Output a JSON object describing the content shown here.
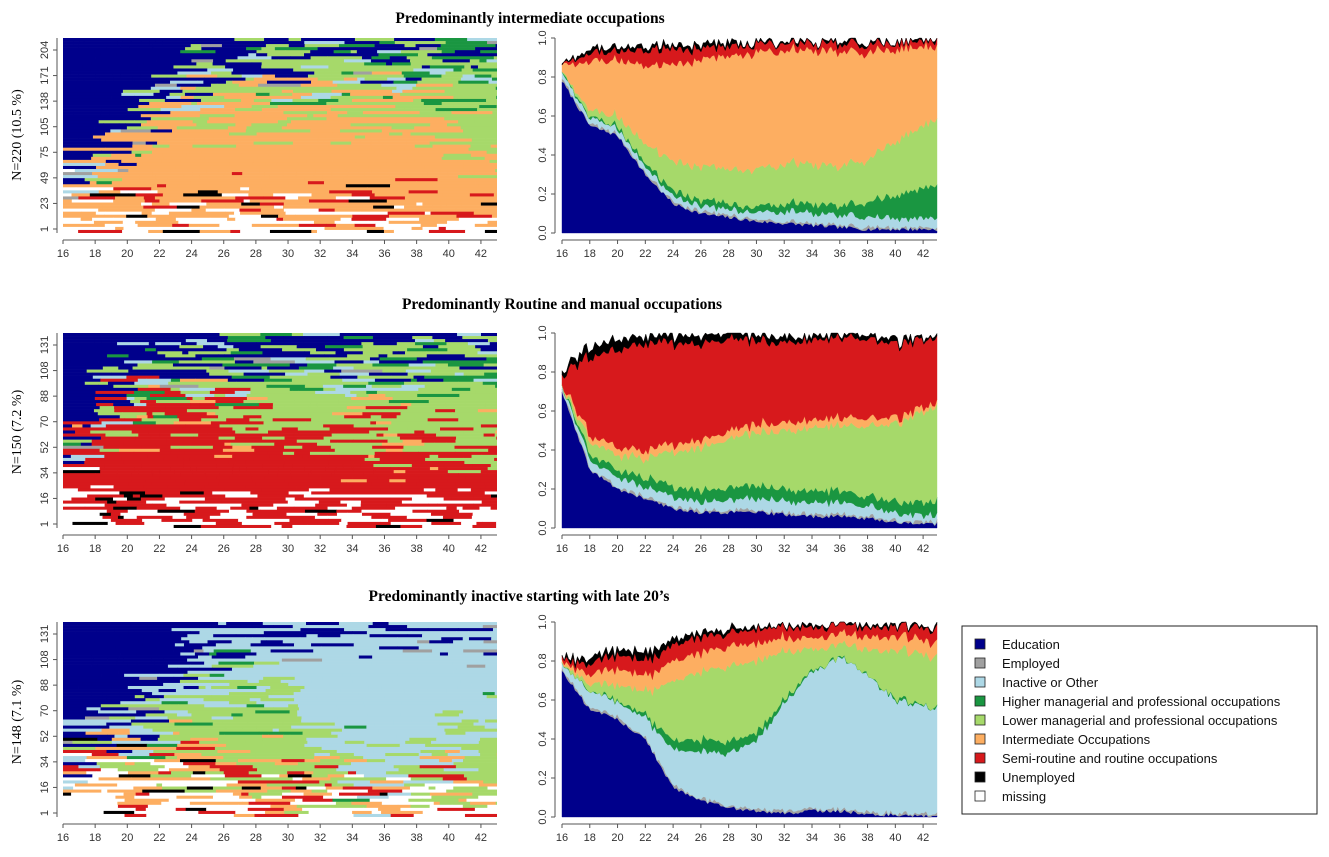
{
  "legend": [
    {
      "label": "Education",
      "color": "#00008B"
    },
    {
      "label": "Employed",
      "color": "#A0A0A0"
    },
    {
      "label": "Inactive or Other",
      "color": "#ADD8E6"
    },
    {
      "label": "Higher managerial and professional occupations",
      "color": "#1A9641"
    },
    {
      "label": "Lower managerial and professional occupations",
      "color": "#A6D96A"
    },
    {
      "label": "Intermediate Occupations",
      "color": "#FDAE61"
    },
    {
      "label": "Semi-routine and routine occupations",
      "color": "#D7191C"
    },
    {
      "label": "Unemployed",
      "color": "#000000"
    },
    {
      "label": "missing",
      "color": "#FFFFFF"
    }
  ],
  "chart_data": [
    {
      "type": "area",
      "title": "Predominantly intermediate occupations",
      "ylabel": "N=220 (10.5 %)",
      "x_ticks": [
        "16",
        "18",
        "20",
        "22",
        "24",
        "26",
        "28",
        "30",
        "32",
        "34",
        "36",
        "38",
        "40",
        "42"
      ],
      "index_ticks": [
        "1",
        "23",
        "49",
        "75",
        "105",
        "138",
        "171",
        "204"
      ],
      "y_ticks": [
        "0.0",
        "0.2",
        "0.4",
        "0.6",
        "0.8",
        "1.0"
      ],
      "xlim": [
        16,
        43
      ],
      "ylim": [
        0,
        1
      ],
      "x": [
        16,
        18,
        20,
        22,
        24,
        26,
        28,
        30,
        32,
        34,
        36,
        38,
        40,
        43
      ],
      "series": [
        {
          "name": "Education",
          "values": [
            0.78,
            0.55,
            0.5,
            0.3,
            0.15,
            0.1,
            0.08,
            0.06,
            0.05,
            0.04,
            0.03,
            0.02,
            0.02,
            0.02
          ]
        },
        {
          "name": "Employed",
          "values": [
            0.01,
            0.01,
            0.01,
            0.01,
            0.01,
            0.01,
            0.01,
            0.01,
            0.01,
            0.01,
            0.01,
            0.01,
            0.01,
            0.01
          ]
        },
        {
          "name": "Inactive or Other",
          "values": [
            0.03,
            0.03,
            0.03,
            0.03,
            0.03,
            0.03,
            0.03,
            0.04,
            0.05,
            0.05,
            0.05,
            0.05,
            0.05,
            0.05
          ]
        },
        {
          "name": "Higher managerial and professional occupations",
          "values": [
            0.0,
            0.01,
            0.01,
            0.02,
            0.03,
            0.03,
            0.03,
            0.03,
            0.04,
            0.05,
            0.05,
            0.08,
            0.12,
            0.17
          ]
        },
        {
          "name": "Lower managerial and professional occupations",
          "values": [
            0.0,
            0.03,
            0.05,
            0.1,
            0.15,
            0.17,
            0.18,
            0.19,
            0.2,
            0.2,
            0.2,
            0.22,
            0.28,
            0.34
          ]
        },
        {
          "name": "Intermediate Occupations",
          "values": [
            0.03,
            0.25,
            0.29,
            0.4,
            0.5,
            0.55,
            0.58,
            0.6,
            0.58,
            0.58,
            0.59,
            0.55,
            0.47,
            0.37
          ]
        },
        {
          "name": "Semi-routine and routine occupations",
          "values": [
            0.01,
            0.04,
            0.05,
            0.08,
            0.08,
            0.06,
            0.05,
            0.04,
            0.04,
            0.04,
            0.04,
            0.04,
            0.03,
            0.03
          ]
        },
        {
          "name": "Unemployed",
          "values": [
            0.0,
            0.02,
            0.02,
            0.02,
            0.02,
            0.02,
            0.02,
            0.01,
            0.01,
            0.01,
            0.01,
            0.01,
            0.01,
            0.01
          ]
        },
        {
          "name": "missing",
          "values": [
            0.14,
            0.06,
            0.04,
            0.04,
            0.03,
            0.03,
            0.02,
            0.02,
            0.02,
            0.02,
            0.02,
            0.02,
            0.01,
            0.0
          ]
        }
      ]
    },
    {
      "type": "area",
      "title": "Predominantly Routine and manual occupations",
      "ylabel": "N=150 (7.2 %)",
      "x_ticks": [
        "16",
        "18",
        "20",
        "22",
        "24",
        "26",
        "28",
        "30",
        "32",
        "34",
        "36",
        "38",
        "40",
        "42"
      ],
      "index_ticks": [
        "1",
        "16",
        "34",
        "52",
        "70",
        "88",
        "108",
        "131"
      ],
      "y_ticks": [
        "0.0",
        "0.2",
        "0.4",
        "0.6",
        "0.8",
        "1.0"
      ],
      "xlim": [
        16,
        43
      ],
      "ylim": [
        0,
        1
      ],
      "x": [
        16,
        18,
        20,
        22,
        24,
        26,
        28,
        30,
        32,
        34,
        36,
        38,
        40,
        43
      ],
      "series": [
        {
          "name": "Education",
          "values": [
            0.7,
            0.3,
            0.2,
            0.15,
            0.1,
            0.08,
            0.08,
            0.08,
            0.07,
            0.06,
            0.06,
            0.05,
            0.03,
            0.02
          ]
        },
        {
          "name": "Employed",
          "values": [
            0.01,
            0.01,
            0.01,
            0.01,
            0.01,
            0.01,
            0.01,
            0.01,
            0.01,
            0.01,
            0.01,
            0.01,
            0.01,
            0.01
          ]
        },
        {
          "name": "Inactive or Other",
          "values": [
            0.02,
            0.04,
            0.05,
            0.05,
            0.05,
            0.05,
            0.05,
            0.06,
            0.06,
            0.06,
            0.06,
            0.05,
            0.04,
            0.03
          ]
        },
        {
          "name": "Higher managerial and professional occupations",
          "values": [
            0.0,
            0.03,
            0.04,
            0.05,
            0.05,
            0.06,
            0.06,
            0.07,
            0.06,
            0.06,
            0.06,
            0.05,
            0.06,
            0.07
          ]
        },
        {
          "name": "Lower managerial and professional occupations",
          "values": [
            0.0,
            0.06,
            0.08,
            0.1,
            0.18,
            0.22,
            0.25,
            0.27,
            0.3,
            0.32,
            0.33,
            0.36,
            0.4,
            0.49
          ]
        },
        {
          "name": "Intermediate Occupations",
          "values": [
            0.01,
            0.03,
            0.04,
            0.04,
            0.04,
            0.04,
            0.04,
            0.04,
            0.04,
            0.04,
            0.04,
            0.04,
            0.03,
            0.02
          ]
        },
        {
          "name": "Semi-routine and routine occupations",
          "values": [
            0.05,
            0.4,
            0.5,
            0.55,
            0.52,
            0.49,
            0.47,
            0.43,
            0.41,
            0.41,
            0.41,
            0.41,
            0.38,
            0.33
          ]
        },
        {
          "name": "Unemployed",
          "values": [
            0.02,
            0.05,
            0.05,
            0.04,
            0.04,
            0.04,
            0.04,
            0.03,
            0.03,
            0.02,
            0.02,
            0.02,
            0.02,
            0.01
          ]
        },
        {
          "name": "missing",
          "values": [
            0.19,
            0.08,
            0.03,
            0.01,
            0.01,
            0.01,
            0.0,
            0.01,
            0.02,
            0.02,
            0.01,
            0.01,
            0.03,
            0.02
          ]
        }
      ]
    },
    {
      "type": "area",
      "title": "Predominantly inactive starting with late 20’s",
      "ylabel": "N=148 (7.1 %)",
      "x_ticks": [
        "16",
        "18",
        "20",
        "22",
        "24",
        "26",
        "28",
        "30",
        "32",
        "34",
        "36",
        "38",
        "40",
        "42"
      ],
      "index_ticks": [
        "1",
        "16",
        "34",
        "52",
        "70",
        "88",
        "108",
        "131"
      ],
      "y_ticks": [
        "0.0",
        "0.2",
        "0.4",
        "0.6",
        "0.8",
        "1.0"
      ],
      "xlim": [
        16,
        43
      ],
      "ylim": [
        0,
        1
      ],
      "x": [
        16,
        18,
        20,
        22,
        24,
        26,
        28,
        30,
        32,
        34,
        36,
        38,
        40,
        43
      ],
      "series": [
        {
          "name": "Education",
          "values": [
            0.75,
            0.55,
            0.5,
            0.4,
            0.15,
            0.08,
            0.05,
            0.03,
            0.02,
            0.03,
            0.03,
            0.02,
            0.01,
            0.0
          ]
        },
        {
          "name": "Employed",
          "values": [
            0.01,
            0.01,
            0.01,
            0.01,
            0.01,
            0.01,
            0.01,
            0.01,
            0.01,
            0.01,
            0.01,
            0.01,
            0.01,
            0.01
          ]
        },
        {
          "name": "Inactive or Other",
          "values": [
            0.03,
            0.08,
            0.08,
            0.1,
            0.18,
            0.24,
            0.27,
            0.35,
            0.55,
            0.7,
            0.78,
            0.7,
            0.58,
            0.54
          ]
        },
        {
          "name": "Higher managerial and professional occupations",
          "values": [
            0.0,
            0.0,
            0.01,
            0.02,
            0.05,
            0.06,
            0.06,
            0.04,
            0.02,
            0.01,
            0.0,
            0.0,
            0.01,
            0.01
          ]
        },
        {
          "name": "Lower managerial and professional occupations",
          "values": [
            0.0,
            0.04,
            0.08,
            0.12,
            0.3,
            0.35,
            0.38,
            0.37,
            0.25,
            0.11,
            0.06,
            0.13,
            0.25,
            0.26
          ]
        },
        {
          "name": "Intermediate Occupations",
          "values": [
            0.01,
            0.05,
            0.08,
            0.08,
            0.1,
            0.1,
            0.1,
            0.09,
            0.07,
            0.06,
            0.05,
            0.07,
            0.07,
            0.08
          ]
        },
        {
          "name": "Semi-routine and routine occupations",
          "values": [
            0.01,
            0.05,
            0.07,
            0.08,
            0.08,
            0.08,
            0.07,
            0.07,
            0.06,
            0.05,
            0.05,
            0.05,
            0.05,
            0.07
          ]
        },
        {
          "name": "Unemployed",
          "values": [
            0.01,
            0.03,
            0.03,
            0.04,
            0.03,
            0.02,
            0.02,
            0.01,
            0.01,
            0.01,
            0.01,
            0.01,
            0.01,
            0.01
          ]
        },
        {
          "name": "missing",
          "values": [
            0.18,
            0.19,
            0.14,
            0.15,
            0.1,
            0.06,
            0.04,
            0.03,
            0.01,
            0.02,
            0.01,
            0.01,
            0.01,
            0.02
          ]
        }
      ]
    }
  ]
}
